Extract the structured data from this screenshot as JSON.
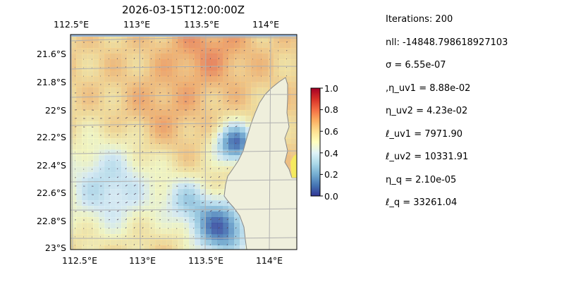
{
  "map": {
    "title": "2026-03-15T12:00:00Z",
    "lon_ticks": [
      "112.5°E",
      "113°E",
      "113.5°E",
      "114°E"
    ],
    "lat_ticks": [
      "21.6°S",
      "21.8°S",
      "22°S",
      "22.2°S",
      "22.4°S",
      "22.6°S",
      "22.8°S",
      "23°S"
    ],
    "extent": {
      "lon": [
        112.5,
        114.2
      ],
      "lat": [
        -23.0,
        -21.5
      ]
    }
  },
  "colorbar": {
    "ticks": [
      "1.0",
      "0.8",
      "0.6",
      "0.4",
      "0.2",
      "0.0"
    ],
    "colormap": [
      "#313695",
      "#4575b4",
      "#74add1",
      "#abd9e9",
      "#e0f3f8",
      "#ffffbf",
      "#fee090",
      "#fdae61",
      "#f46d43",
      "#d73027",
      "#a50026"
    ]
  },
  "colors": {
    "ocean": "#9bb8d8",
    "land": "#efefdc",
    "coast": "#888888",
    "grid": "#b0b0b0"
  },
  "stats": [
    "Iterations: 200",
    "nll: -14848.798618927103",
    "σ = 6.55e-07",
    ",η_uv1 = 8.88e-02",
    "η_uv2 = 4.23e-02",
    "ℓ_uv1 = 7971.90",
    "ℓ_uv2 = 10331.91",
    "η_q = 2.10e-05",
    "ℓ_q = 33261.04"
  ]
}
